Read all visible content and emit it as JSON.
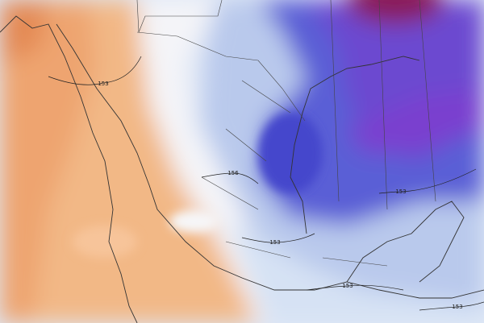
{
  "contour_labels": [
    "153",
    "156",
    "153",
    "153",
    "153",
    "153"
  ]
}
